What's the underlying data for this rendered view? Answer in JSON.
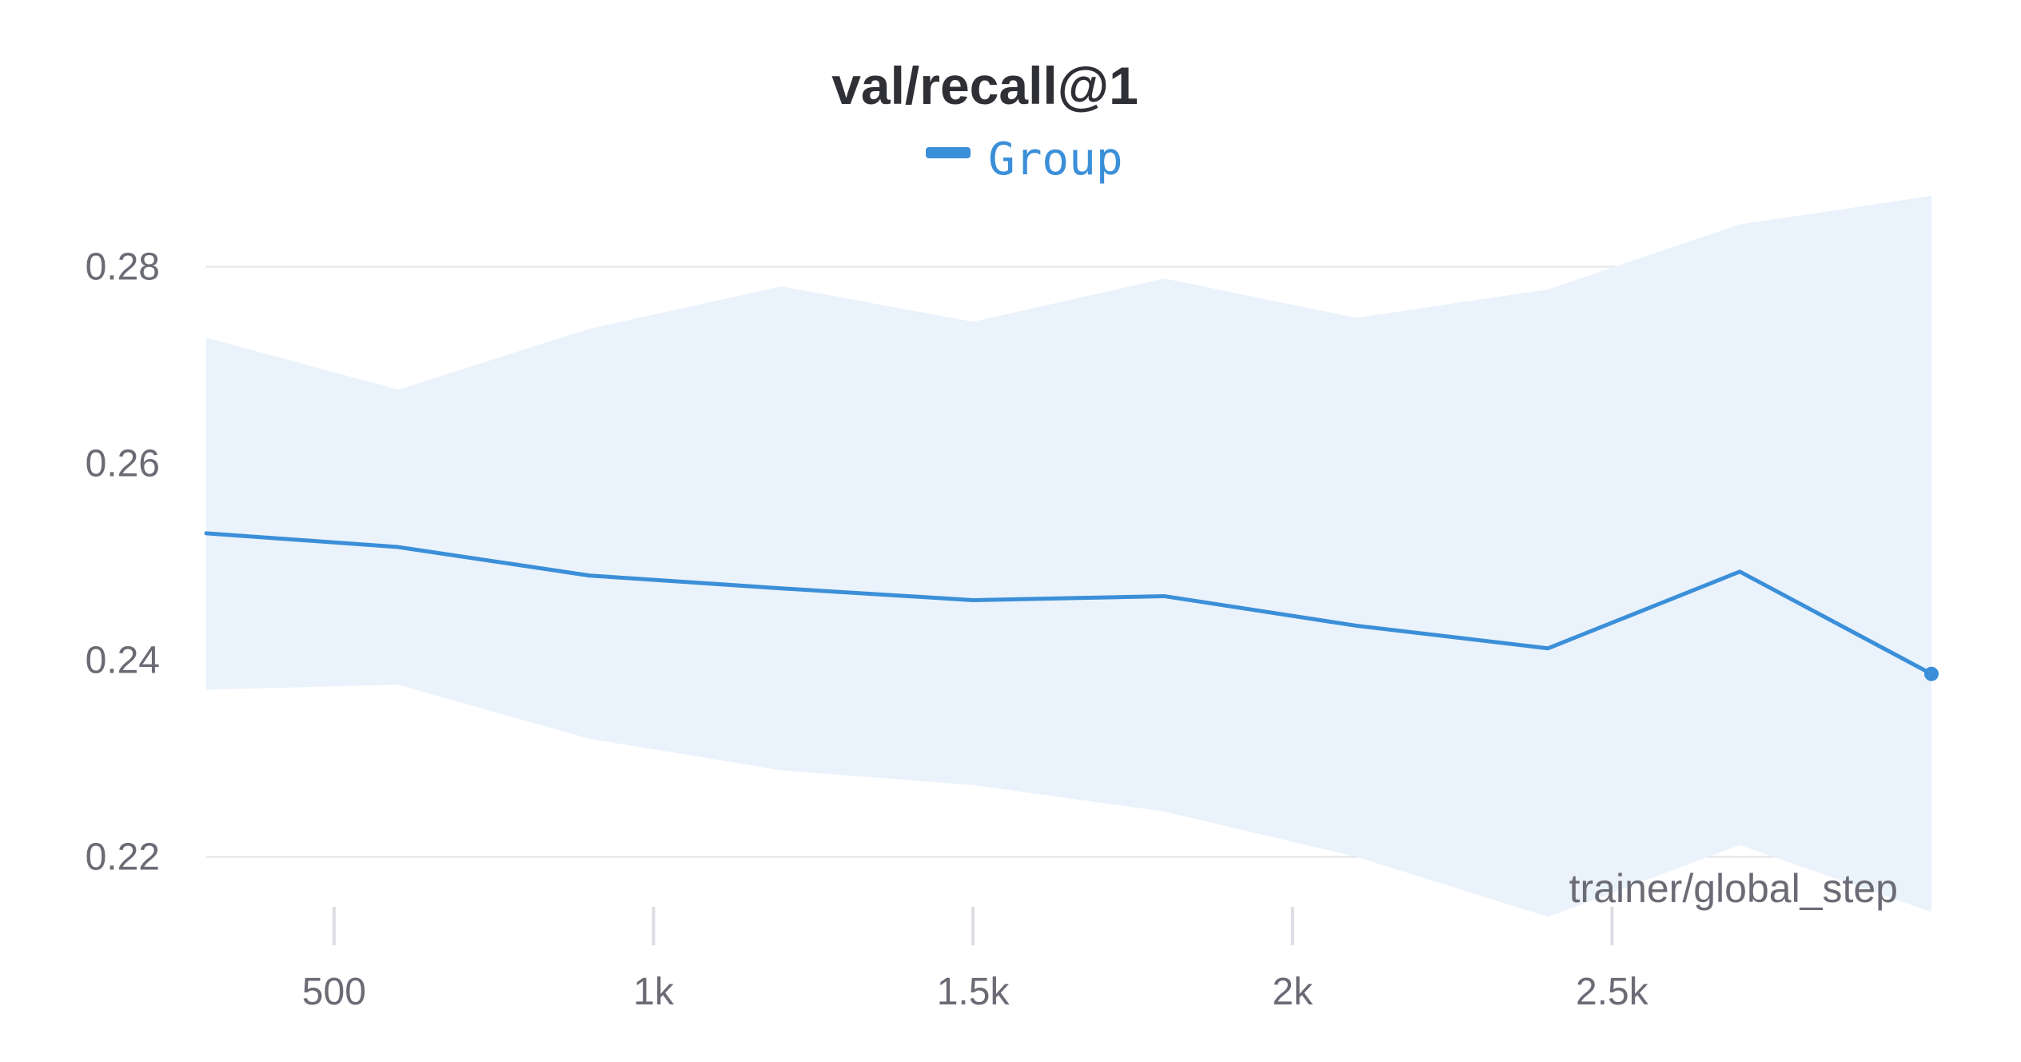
{
  "chart_data": {
    "type": "line",
    "title": "val/recall@1",
    "xlabel": "trainer/global_step",
    "ylabel": "",
    "xlim": [
      300,
      3000
    ],
    "ylim": [
      0.2128,
      0.2872
    ],
    "x_ticks": [
      {
        "value": 500,
        "label": "500"
      },
      {
        "value": 1000,
        "label": "1k"
      },
      {
        "value": 1500,
        "label": "1.5k"
      },
      {
        "value": 2000,
        "label": "2k"
      },
      {
        "value": 2500,
        "label": "2.5k"
      }
    ],
    "y_ticks": [
      {
        "value": 0.22,
        "label": "0.22"
      },
      {
        "value": 0.24,
        "label": "0.24"
      },
      {
        "value": 0.26,
        "label": "0.26"
      },
      {
        "value": 0.28,
        "label": "0.28"
      }
    ],
    "grid": true,
    "legend_position": "top-center",
    "x": [
      300,
      600,
      900,
      1200,
      1500,
      1800,
      2100,
      2400,
      2700,
      3000
    ],
    "series": [
      {
        "name": "Group",
        "color": "#3b8fd8",
        "band_color": "#eaf2fb",
        "values": [
          0.2529,
          0.2515,
          0.2486,
          0.2473,
          0.2461,
          0.2465,
          0.2435,
          0.2412,
          0.249,
          0.2386
        ],
        "upper": [
          0.2728,
          0.2675,
          0.2737,
          0.278,
          0.2744,
          0.2788,
          0.2748,
          0.2777,
          0.2843,
          0.2872
        ],
        "lower": [
          0.237,
          0.2375,
          0.232,
          0.2288,
          0.2273,
          0.2246,
          0.22,
          0.2139,
          0.2212,
          0.2144
        ]
      }
    ]
  }
}
